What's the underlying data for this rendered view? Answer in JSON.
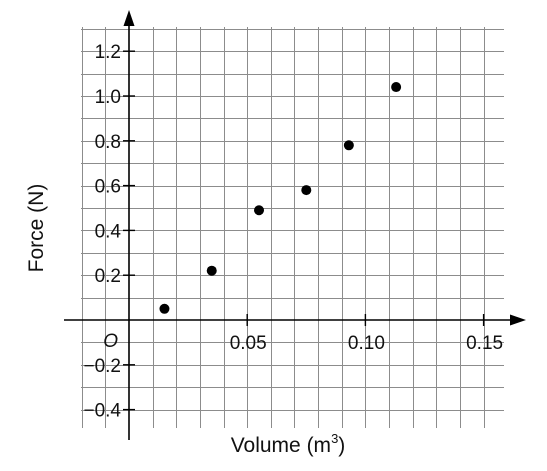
{
  "chart_data": {
    "type": "scatter",
    "title": "",
    "xlabel": "Volume (m",
    "xlabel_sup": "3",
    "xlabel_close": ")",
    "ylabel": "Force (N)",
    "origin_label": "O",
    "xlim": [
      -0.025,
      0.16
    ],
    "ylim": [
      -0.5,
      1.3
    ],
    "grid": true,
    "grid_x_step": 0.01,
    "grid_y_step": 0.1,
    "x_ticks": [
      {
        "value": 0.05,
        "label": "0.05"
      },
      {
        "value": 0.1,
        "label": "0.10"
      },
      {
        "value": 0.15,
        "label": "0.15"
      }
    ],
    "y_ticks": [
      {
        "value": -0.4,
        "label": "−0.4"
      },
      {
        "value": -0.2,
        "label": "−0.2"
      },
      {
        "value": 0.2,
        "label": "0.2"
      },
      {
        "value": 0.4,
        "label": "0.4"
      },
      {
        "value": 0.6,
        "label": "0.6"
      },
      {
        "value": 0.8,
        "label": "0.8"
      },
      {
        "value": 1.0,
        "label": "1.0"
      },
      {
        "value": 1.2,
        "label": "1.2"
      }
    ],
    "points": [
      {
        "x": 0.015,
        "y": 0.05
      },
      {
        "x": 0.035,
        "y": 0.22
      },
      {
        "x": 0.055,
        "y": 0.49
      },
      {
        "x": 0.075,
        "y": 0.58
      },
      {
        "x": 0.093,
        "y": 0.78
      },
      {
        "x": 0.113,
        "y": 1.04
      }
    ],
    "marker_color": "#000000"
  }
}
